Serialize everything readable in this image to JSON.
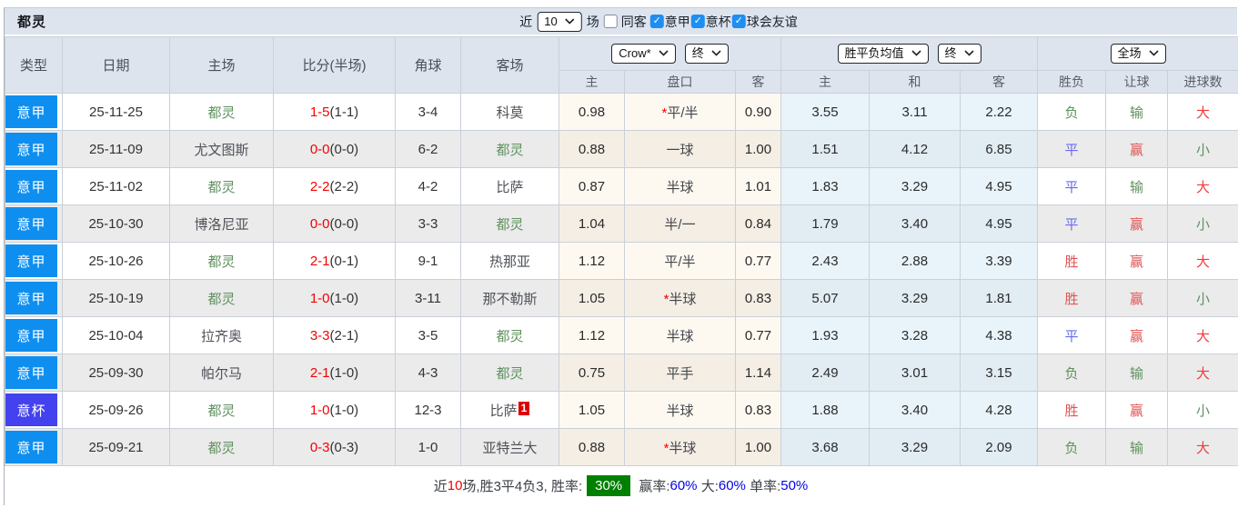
{
  "title": "都灵",
  "controls": {
    "near_label": "近",
    "count_value": "10",
    "matches_label": "场",
    "checkboxes": [
      {
        "label": "同客",
        "checked": false
      },
      {
        "label": "意甲",
        "checked": true
      },
      {
        "label": "意杯",
        "checked": true
      },
      {
        "label": "球会友谊",
        "checked": true
      }
    ]
  },
  "header": {
    "static_cols": [
      "类型",
      "日期",
      "主场",
      "比分(半场)",
      "角球",
      "客场"
    ],
    "selects": {
      "bookmaker": "Crow*",
      "handicap_time": "终",
      "avg_type": "胜平负均值",
      "avg_time": "终",
      "scope": "全场"
    },
    "sub_cols": [
      "主",
      "盘口",
      "客",
      "主",
      "和",
      "客",
      "胜负",
      "让球",
      "进球数"
    ]
  },
  "colors": {
    "league_badge": {
      "意甲": "#0e8ff0",
      "意杯": "#4342ee"
    },
    "result": {
      "胜": "#e25353",
      "平": "#6a6aee",
      "负": "#5f915f",
      "赢": "#e25353",
      "输": "#5f915f",
      "大": "#f23b3b",
      "小": "#5f915f"
    },
    "team_highlight": "#5f915f",
    "score_red": "#f50000",
    "win_rate_badge_bg": "#008000",
    "stat_blue": "#0404e8",
    "checkbox_blue": "#1e8ff2"
  },
  "rows": [
    {
      "league": "意甲",
      "date": "25-11-25",
      "home": "都灵",
      "home_hl": true,
      "score": "1-5",
      "half": "(1-1)",
      "corners": "3-4",
      "away": "科莫",
      "away_hl": false,
      "away_sup": "",
      "o1": "0.98",
      "star": true,
      "handicap": "平/半",
      "o2": "0.90",
      "a1": "3.55",
      "a2": "3.11",
      "a3": "2.22",
      "r1": "负",
      "r2": "输",
      "r3": "大"
    },
    {
      "league": "意甲",
      "date": "25-11-09",
      "home": "尤文图斯",
      "home_hl": false,
      "score": "0-0",
      "half": "(0-0)",
      "corners": "6-2",
      "away": "都灵",
      "away_hl": true,
      "away_sup": "",
      "o1": "0.88",
      "star": false,
      "handicap": "一球",
      "o2": "1.00",
      "a1": "1.51",
      "a2": "4.12",
      "a3": "6.85",
      "r1": "平",
      "r2": "赢",
      "r3": "小"
    },
    {
      "league": "意甲",
      "date": "25-11-02",
      "home": "都灵",
      "home_hl": true,
      "score": "2-2",
      "half": "(2-2)",
      "corners": "4-2",
      "away": "比萨",
      "away_hl": false,
      "away_sup": "",
      "o1": "0.87",
      "star": false,
      "handicap": "半球",
      "o2": "1.01",
      "a1": "1.83",
      "a2": "3.29",
      "a3": "4.95",
      "r1": "平",
      "r2": "输",
      "r3": "大"
    },
    {
      "league": "意甲",
      "date": "25-10-30",
      "home": "博洛尼亚",
      "home_hl": false,
      "score": "0-0",
      "half": "(0-0)",
      "corners": "3-3",
      "away": "都灵",
      "away_hl": true,
      "away_sup": "",
      "o1": "1.04",
      "star": false,
      "handicap": "半/一",
      "o2": "0.84",
      "a1": "1.79",
      "a2": "3.40",
      "a3": "4.95",
      "r1": "平",
      "r2": "赢",
      "r3": "小"
    },
    {
      "league": "意甲",
      "date": "25-10-26",
      "home": "都灵",
      "home_hl": true,
      "score": "2-1",
      "half": "(0-1)",
      "corners": "9-1",
      "away": "热那亚",
      "away_hl": false,
      "away_sup": "",
      "o1": "1.12",
      "star": false,
      "handicap": "平/半",
      "o2": "0.77",
      "a1": "2.43",
      "a2": "2.88",
      "a3": "3.39",
      "r1": "胜",
      "r2": "赢",
      "r3": "大"
    },
    {
      "league": "意甲",
      "date": "25-10-19",
      "home": "都灵",
      "home_hl": true,
      "score": "1-0",
      "half": "(1-0)",
      "corners": "3-11",
      "away": "那不勒斯",
      "away_hl": false,
      "away_sup": "",
      "o1": "1.05",
      "star": true,
      "handicap": "半球",
      "o2": "0.83",
      "a1": "5.07",
      "a2": "3.29",
      "a3": "1.81",
      "r1": "胜",
      "r2": "赢",
      "r3": "小"
    },
    {
      "league": "意甲",
      "date": "25-10-04",
      "home": "拉齐奥",
      "home_hl": false,
      "score": "3-3",
      "half": "(2-1)",
      "corners": "3-5",
      "away": "都灵",
      "away_hl": true,
      "away_sup": "",
      "o1": "1.12",
      "star": false,
      "handicap": "半球",
      "o2": "0.77",
      "a1": "1.93",
      "a2": "3.28",
      "a3": "4.38",
      "r1": "平",
      "r2": "赢",
      "r3": "大"
    },
    {
      "league": "意甲",
      "date": "25-09-30",
      "home": "帕尔马",
      "home_hl": false,
      "score": "2-1",
      "half": "(1-0)",
      "corners": "4-3",
      "away": "都灵",
      "away_hl": true,
      "away_sup": "",
      "o1": "0.75",
      "star": false,
      "handicap": "平手",
      "o2": "1.14",
      "a1": "2.49",
      "a2": "3.01",
      "a3": "3.15",
      "r1": "负",
      "r2": "输",
      "r3": "大"
    },
    {
      "league": "意杯",
      "date": "25-09-26",
      "home": "都灵",
      "home_hl": true,
      "score": "1-0",
      "half": "(1-0)",
      "corners": "12-3",
      "away": "比萨",
      "away_hl": false,
      "away_sup": "1",
      "o1": "1.05",
      "star": false,
      "handicap": "半球",
      "o2": "0.83",
      "a1": "1.88",
      "a2": "3.40",
      "a3": "4.28",
      "r1": "胜",
      "r2": "赢",
      "r3": "小"
    },
    {
      "league": "意甲",
      "date": "25-09-21",
      "home": "都灵",
      "home_hl": true,
      "score": "0-3",
      "half": "(0-3)",
      "corners": "1-0",
      "away": "亚特兰大",
      "away_hl": false,
      "away_sup": "",
      "o1": "0.88",
      "star": true,
      "handicap": "半球",
      "o2": "1.00",
      "a1": "3.68",
      "a2": "3.29",
      "a3": "2.09",
      "r1": "负",
      "r2": "输",
      "r3": "大"
    }
  ],
  "footer": {
    "segments": [
      {
        "text": "近",
        "style": "plain"
      },
      {
        "text": "10",
        "style": "red"
      },
      {
        "text": "场,胜3平4负3, 胜率:",
        "style": "plain"
      },
      {
        "text": "30%",
        "style": "badge"
      },
      {
        "text": " 赢率:",
        "style": "plain"
      },
      {
        "text": "60%",
        "style": "blue"
      },
      {
        "text": " 大:",
        "style": "plain"
      },
      {
        "text": "60%",
        "style": "blue"
      },
      {
        "text": " 单率:",
        "style": "plain"
      },
      {
        "text": "50%",
        "style": "blue"
      }
    ]
  }
}
